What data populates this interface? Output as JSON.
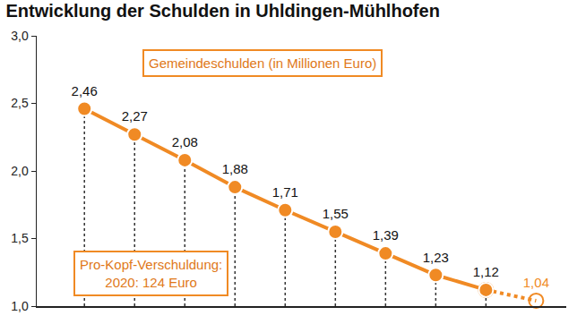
{
  "chart_data": {
    "type": "line",
    "title": "Entwicklung der Schulden in Uhldingen-Mühlhofen",
    "categories": [
      null,
      null,
      null,
      null,
      null,
      null,
      null,
      null,
      null,
      null
    ],
    "series": [
      {
        "color": "#f08a24",
        "marker": "circle",
        "line_style": "solid",
        "values": [
          2.46,
          2.27,
          2.08,
          1.88,
          1.71,
          1.55,
          1.39,
          1.23,
          1.12,
          null
        ],
        "value_labels": [
          "2,46",
          "2,27",
          "2,08",
          "1,88",
          "1,71",
          "1,55",
          "1,39",
          "1,23",
          "1,12",
          null
        ]
      },
      {
        "color": "#f08a24",
        "marker": "circle-open",
        "line_style": "dot",
        "values": [
          null,
          null,
          null,
          null,
          null,
          null,
          null,
          null,
          1.12,
          1.04
        ],
        "value_labels": [
          null,
          null,
          null,
          null,
          null,
          null,
          null,
          null,
          null,
          "1,04"
        ]
      }
    ],
    "ylim": [
      1,
      3
    ],
    "yticks": [
      {
        "value": 1,
        "label": "1,0"
      },
      {
        "value": 1.5,
        "label": "1,5"
      },
      {
        "value": 2,
        "label": "2,0"
      },
      {
        "value": 2.5,
        "label": "2,5"
      },
      {
        "value": 3,
        "label": "3,0"
      }
    ],
    "grid": false,
    "data_labels": true,
    "annotations": [
      {
        "text": [
          "Gemeindeschulden (in Millionen Euro)"
        ]
      },
      {
        "text": [
          "Pro-Kopf-Verschuldung:",
          "2020: 124 Euro"
        ]
      }
    ]
  }
}
